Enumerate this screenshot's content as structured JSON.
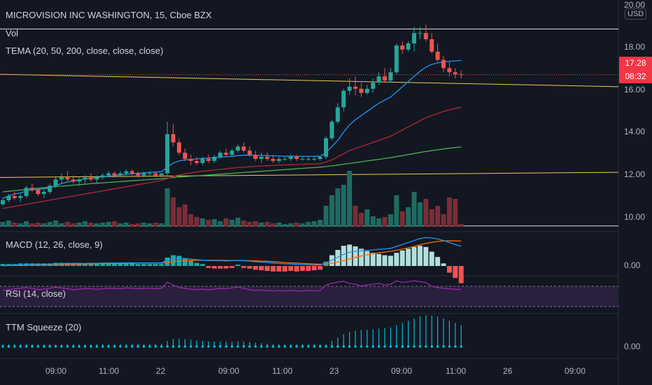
{
  "header": {
    "symbol_title": "MICROVISION INC WASHINGTON, 15, Cboe BZX",
    "vol_label": "Vol",
    "tema_label": "TEMA (20, 50, 200, close, close, close)"
  },
  "panes": {
    "macd_label": "MACD (12, 26, close, 9)",
    "rsi_label": "RSI (14, close)",
    "ttm_label": "TTM Squeeze (20)"
  },
  "price_axis": {
    "currency": "USD",
    "ticks": [
      "20.00",
      "18.00",
      "16.00",
      "14.00",
      "12.00",
      "10.00"
    ],
    "last_price": "17.28",
    "countdown": "08:32",
    "macd_zero": "0.00",
    "ttm_zero": "0.00"
  },
  "time_axis": {
    "ticks": [
      "09:00",
      "11:00",
      "22",
      "09:00",
      "11:00",
      "23",
      "09:00",
      "11:00",
      "26",
      "09:00"
    ]
  },
  "colors": {
    "background": "#131722",
    "up": "#26a69a",
    "down": "#ef5350",
    "tema_fast": "#2196f3",
    "tema_mid": "#b22833",
    "tema_slow": "#4caf50",
    "trendline": "#f2c94c",
    "macd_line": "#2196f3",
    "signal_line": "#ff6d00",
    "rsi_line": "#9c27b0",
    "ttm_line": "#00bcd4"
  },
  "chart_data": {
    "type": "candlestick",
    "price_range": [
      9.5,
      20.7
    ],
    "candles": [
      [
        11.0,
        11.3,
        10.9,
        11.2
      ],
      [
        11.2,
        11.5,
        11.1,
        11.4
      ],
      [
        11.4,
        11.6,
        11.2,
        11.3
      ],
      [
        11.3,
        11.5,
        11.1,
        11.4
      ],
      [
        11.4,
        11.9,
        11.3,
        11.8
      ],
      [
        11.8,
        12.0,
        11.6,
        11.7
      ],
      [
        11.7,
        11.8,
        11.4,
        11.5
      ],
      [
        11.5,
        11.7,
        11.3,
        11.6
      ],
      [
        11.6,
        12.0,
        11.5,
        11.9
      ],
      [
        11.9,
        12.3,
        11.8,
        12.2
      ],
      [
        12.2,
        12.5,
        12.0,
        12.3
      ],
      [
        12.3,
        12.6,
        12.1,
        12.2
      ],
      [
        12.2,
        12.4,
        12.0,
        12.1
      ],
      [
        12.1,
        12.3,
        11.9,
        12.2
      ],
      [
        12.2,
        12.4,
        12.0,
        12.3
      ],
      [
        12.3,
        12.5,
        12.1,
        12.2
      ],
      [
        12.2,
        12.4,
        12.0,
        12.3
      ],
      [
        12.3,
        12.5,
        12.2,
        12.4
      ],
      [
        12.4,
        12.6,
        12.3,
        12.5
      ],
      [
        12.5,
        12.6,
        12.3,
        12.4
      ],
      [
        12.4,
        12.6,
        12.3,
        12.5
      ],
      [
        12.5,
        12.7,
        12.4,
        12.6
      ],
      [
        12.6,
        12.7,
        12.4,
        12.5
      ],
      [
        12.5,
        12.6,
        12.3,
        12.4
      ],
      [
        12.4,
        12.6,
        12.3,
        12.5
      ],
      [
        12.5,
        12.6,
        12.4,
        12.5
      ],
      [
        12.5,
        12.6,
        12.3,
        12.4
      ],
      [
        12.4,
        12.5,
        12.3,
        12.5
      ],
      [
        12.5,
        15.0,
        12.4,
        14.4
      ],
      [
        14.4,
        14.9,
        13.8,
        14.0
      ],
      [
        14.0,
        14.2,
        13.4,
        13.5
      ],
      [
        13.5,
        13.7,
        13.1,
        13.2
      ],
      [
        13.2,
        13.4,
        12.9,
        13.1
      ],
      [
        13.1,
        13.3,
        12.9,
        13.0
      ],
      [
        13.0,
        13.3,
        12.9,
        13.2
      ],
      [
        13.2,
        13.4,
        13.0,
        13.1
      ],
      [
        13.1,
        13.4,
        13.0,
        13.3
      ],
      [
        13.3,
        13.6,
        13.2,
        13.5
      ],
      [
        13.5,
        13.7,
        13.3,
        13.4
      ],
      [
        13.4,
        13.7,
        13.3,
        13.6
      ],
      [
        13.6,
        13.9,
        13.5,
        13.8
      ],
      [
        13.8,
        14.0,
        13.5,
        13.6
      ],
      [
        13.6,
        13.8,
        13.3,
        13.4
      ],
      [
        13.4,
        13.6,
        13.1,
        13.2
      ],
      [
        13.2,
        13.5,
        13.0,
        13.3
      ],
      [
        13.3,
        13.5,
        13.1,
        13.2
      ],
      [
        13.2,
        13.4,
        13.0,
        13.1
      ],
      [
        13.1,
        13.3,
        13.0,
        13.2
      ],
      [
        13.2,
        13.3,
        13.1,
        13.2
      ],
      [
        13.2,
        13.4,
        13.1,
        13.3
      ],
      [
        13.3,
        13.4,
        13.1,
        13.2
      ],
      [
        13.2,
        13.3,
        13.1,
        13.2
      ],
      [
        13.2,
        13.3,
        13.1,
        13.2
      ],
      [
        13.2,
        13.3,
        13.1,
        13.2
      ],
      [
        13.2,
        13.3,
        13.1,
        13.3
      ],
      [
        13.3,
        14.3,
        13.2,
        14.2
      ],
      [
        14.2,
        15.1,
        14.1,
        15.0
      ],
      [
        15.0,
        15.9,
        14.9,
        15.7
      ],
      [
        15.7,
        16.6,
        15.5,
        16.5
      ],
      [
        16.5,
        17.1,
        16.3,
        16.7
      ],
      [
        16.7,
        17.2,
        16.3,
        16.6
      ],
      [
        16.6,
        16.9,
        16.2,
        16.4
      ],
      [
        16.4,
        16.8,
        16.3,
        16.6
      ],
      [
        16.6,
        17.1,
        16.4,
        16.9
      ],
      [
        16.9,
        17.4,
        16.8,
        17.2
      ],
      [
        17.2,
        17.6,
        16.9,
        17.0
      ],
      [
        17.0,
        17.6,
        16.9,
        17.4
      ],
      [
        17.4,
        18.8,
        17.3,
        18.7
      ],
      [
        18.7,
        18.9,
        18.3,
        18.5
      ],
      [
        18.5,
        18.9,
        18.4,
        18.8
      ],
      [
        18.8,
        19.6,
        18.4,
        19.3
      ],
      [
        19.3,
        19.6,
        19.0,
        19.3
      ],
      [
        19.3,
        19.7,
        18.9,
        19.0
      ],
      [
        19.0,
        19.3,
        18.3,
        18.4
      ],
      [
        18.4,
        18.8,
        17.9,
        18.0
      ],
      [
        18.0,
        18.2,
        17.4,
        17.6
      ],
      [
        17.6,
        17.9,
        17.2,
        17.4
      ],
      [
        17.4,
        17.6,
        17.1,
        17.3
      ],
      [
        17.3,
        17.5,
        17.1,
        17.28
      ]
    ],
    "volume": [
      7,
      9,
      6,
      5,
      8,
      5,
      6,
      5,
      7,
      9,
      5,
      7,
      5,
      6,
      8,
      6,
      5,
      6,
      7,
      8,
      5,
      6,
      4,
      5,
      6,
      5,
      6,
      5,
      55,
      42,
      28,
      32,
      18,
      14,
      12,
      10,
      11,
      8,
      12,
      10,
      13,
      9,
      7,
      8,
      6,
      7,
      5,
      6,
      4,
      5,
      6,
      5,
      7,
      8,
      10,
      30,
      45,
      55,
      60,
      80,
      30,
      20,
      25,
      15,
      12,
      14,
      18,
      45,
      22,
      28,
      50,
      35,
      40,
      25,
      30,
      18,
      42,
      40,
      4
    ],
    "tema_20": [
      11.3,
      11.4,
      11.5,
      11.55,
      11.65,
      11.7,
      11.72,
      11.75,
      11.8,
      11.9,
      12.0,
      12.08,
      12.13,
      12.18,
      12.22,
      12.26,
      12.3,
      12.33,
      12.36,
      12.38,
      12.42,
      12.45,
      12.48,
      12.5,
      12.52,
      12.55,
      12.56,
      12.58,
      12.8,
      13.0,
      13.1,
      13.15,
      13.18,
      13.2,
      13.22,
      13.24,
      13.26,
      13.28,
      13.3,
      13.33,
      13.36,
      13.38,
      13.38,
      13.37,
      13.37,
      13.36,
      13.35,
      13.34,
      13.33,
      13.33,
      13.32,
      13.32,
      13.32,
      13.32,
      13.33,
      13.5,
      13.8,
      14.1,
      14.5,
      14.85,
      15.1,
      15.3,
      15.5,
      15.7,
      15.9,
      16.05,
      16.2,
      16.45,
      16.7,
      16.95,
      17.2,
      17.45,
      17.65,
      17.78,
      17.85,
      17.9,
      17.93,
      17.95,
      17.97
    ],
    "tema_50": [
      10.8,
      10.85,
      10.9,
      10.95,
      11.0,
      11.05,
      11.1,
      11.15,
      11.2,
      11.25,
      11.3,
      11.35,
      11.4,
      11.45,
      11.5,
      11.55,
      11.6,
      11.65,
      11.7,
      11.75,
      11.8,
      11.85,
      11.9,
      11.95,
      12.0,
      12.05,
      12.1,
      12.15,
      12.25,
      12.35,
      12.42,
      12.48,
      12.52,
      12.56,
      12.6,
      12.63,
      12.66,
      12.69,
      12.72,
      12.75,
      12.78,
      12.8,
      12.82,
      12.84,
      12.86,
      12.87,
      12.88,
      12.9,
      12.91,
      12.92,
      12.93,
      12.94,
      12.95,
      12.96,
      12.97,
      13.05,
      13.15,
      13.3,
      13.45,
      13.6,
      13.7,
      13.8,
      13.9,
      14.0,
      14.1,
      14.2,
      14.3,
      14.45,
      14.6,
      14.75,
      14.9,
      15.05,
      15.2,
      15.3,
      15.4,
      15.5,
      15.58,
      15.65,
      15.7
    ],
    "tema_200": [
      11.6,
      11.63,
      11.66,
      11.69,
      11.72,
      11.75,
      11.78,
      11.8,
      11.83,
      11.86,
      11.88,
      11.9,
      11.93,
      11.95,
      11.97,
      12.0,
      12.02,
      12.04,
      12.06,
      12.08,
      12.1,
      12.12,
      12.14,
      12.16,
      12.18,
      12.2,
      12.22,
      12.24,
      12.27,
      12.3,
      12.32,
      12.34,
      12.36,
      12.38,
      12.4,
      12.42,
      12.44,
      12.46,
      12.48,
      12.5,
      12.52,
      12.54,
      12.56,
      12.58,
      12.6,
      12.62,
      12.64,
      12.66,
      12.68,
      12.7,
      12.72,
      12.74,
      12.76,
      12.78,
      12.8,
      12.83,
      12.86,
      12.9,
      12.94,
      12.98,
      13.02,
      13.06,
      13.1,
      13.14,
      13.18,
      13.22,
      13.26,
      13.31,
      13.36,
      13.41,
      13.46,
      13.51,
      13.56,
      13.6,
      13.64,
      13.68,
      13.72,
      13.75,
      13.78
    ],
    "macd": [
      0.02,
      0.03,
      0.04,
      0.05,
      0.06,
      0.07,
      0.07,
      0.08,
      0.09,
      0.1,
      0.11,
      0.12,
      0.12,
      0.13,
      0.13,
      0.14,
      0.14,
      0.15,
      0.15,
      0.15,
      0.16,
      0.16,
      0.16,
      0.16,
      0.16,
      0.16,
      0.16,
      0.16,
      0.3,
      0.38,
      0.4,
      0.38,
      0.35,
      0.32,
      0.3,
      0.28,
      0.27,
      0.27,
      0.26,
      0.27,
      0.28,
      0.27,
      0.25,
      0.22,
      0.2,
      0.18,
      0.15,
      0.13,
      0.11,
      0.1,
      0.08,
      0.07,
      0.06,
      0.05,
      0.05,
      0.15,
      0.3,
      0.45,
      0.6,
      0.7,
      0.75,
      0.78,
      0.8,
      0.82,
      0.85,
      0.87,
      0.9,
      1.0,
      1.1,
      1.2,
      1.3,
      1.4,
      1.45,
      1.43,
      1.38,
      1.3,
      1.2,
      1.1,
      1.0
    ],
    "signal": [
      0.01,
      0.02,
      0.03,
      0.03,
      0.04,
      0.05,
      0.05,
      0.06,
      0.07,
      0.07,
      0.08,
      0.09,
      0.09,
      0.1,
      0.11,
      0.11,
      0.12,
      0.12,
      0.13,
      0.13,
      0.14,
      0.14,
      0.14,
      0.15,
      0.15,
      0.15,
      0.15,
      0.15,
      0.18,
      0.22,
      0.25,
      0.27,
      0.28,
      0.29,
      0.29,
      0.29,
      0.29,
      0.29,
      0.28,
      0.28,
      0.28,
      0.28,
      0.27,
      0.26,
      0.25,
      0.24,
      0.22,
      0.2,
      0.18,
      0.16,
      0.15,
      0.13,
      0.12,
      0.1,
      0.09,
      0.1,
      0.14,
      0.2,
      0.28,
      0.36,
      0.44,
      0.51,
      0.57,
      0.62,
      0.67,
      0.71,
      0.75,
      0.8,
      0.86,
      0.93,
      1.0,
      1.08,
      1.15,
      1.21,
      1.25,
      1.28,
      1.29,
      1.28,
      1.27
    ],
    "rsi": [
      55,
      57,
      59,
      60,
      62,
      60,
      57,
      58,
      60,
      63,
      61,
      59,
      57,
      58,
      60,
      59,
      58,
      59,
      60,
      60,
      59,
      61,
      60,
      59,
      60,
      60,
      59,
      60,
      75,
      68,
      62,
      60,
      58,
      57,
      58,
      57,
      58,
      60,
      59,
      61,
      63,
      60,
      57,
      55,
      56,
      55,
      54,
      55,
      54,
      55,
      54,
      54,
      55,
      54,
      55,
      68,
      72,
      75,
      77,
      72,
      70,
      66,
      68,
      70,
      72,
      68,
      70,
      78,
      74,
      76,
      78,
      76,
      74,
      65,
      62,
      60,
      59,
      58,
      57
    ]
  }
}
